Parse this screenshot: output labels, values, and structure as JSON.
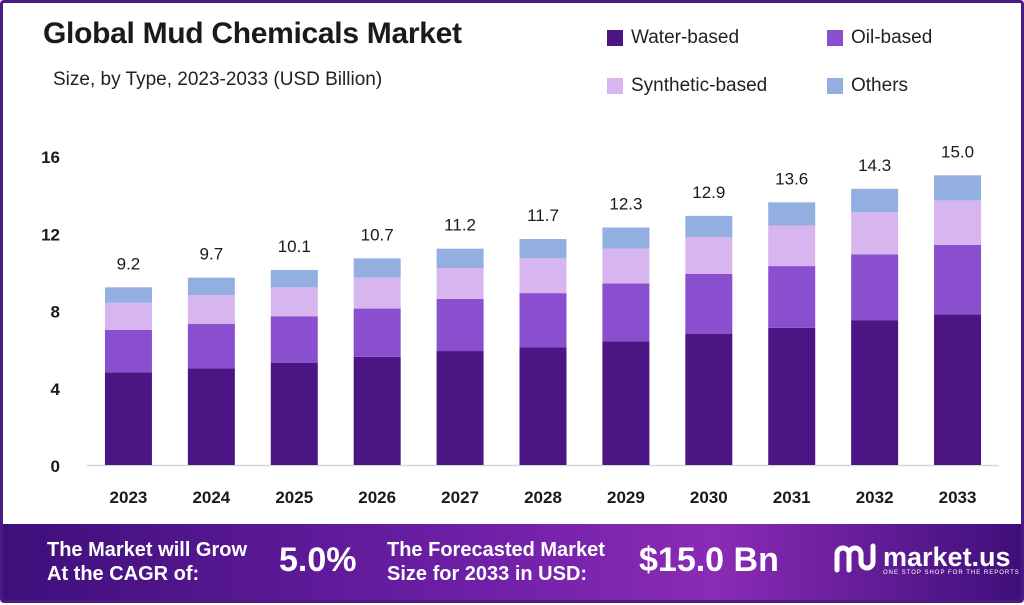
{
  "title": "Global Mud Chemicals Market",
  "subtitle": "Size, by Type, 2023-2033 (USD Billion)",
  "legend": [
    {
      "label": "Water-based",
      "color": "#4b1683"
    },
    {
      "label": "Oil-based",
      "color": "#8a4fce"
    },
    {
      "label": "Synthetic-based",
      "color": "#d7b6f0"
    },
    {
      "label": "Others",
      "color": "#93aee0"
    }
  ],
  "chart_data": {
    "type": "bar",
    "stacked": true,
    "categories": [
      "2023",
      "2024",
      "2025",
      "2026",
      "2027",
      "2028",
      "2029",
      "2030",
      "2031",
      "2032",
      "2033"
    ],
    "totals": [
      9.2,
      9.7,
      10.1,
      10.7,
      11.2,
      11.7,
      12.3,
      12.9,
      13.6,
      14.3,
      15.0
    ],
    "series": [
      {
        "name": "Water-based",
        "color": "#4b1683",
        "values": [
          4.8,
          5.0,
          5.3,
          5.6,
          5.9,
          6.1,
          6.4,
          6.8,
          7.1,
          7.5,
          7.8
        ]
      },
      {
        "name": "Oil-based",
        "color": "#8a4fce",
        "values": [
          2.2,
          2.3,
          2.4,
          2.5,
          2.7,
          2.8,
          3.0,
          3.1,
          3.2,
          3.4,
          3.6
        ]
      },
      {
        "name": "Synthetic-based",
        "color": "#d7b6f0",
        "values": [
          1.4,
          1.5,
          1.5,
          1.6,
          1.6,
          1.8,
          1.8,
          1.9,
          2.1,
          2.2,
          2.3
        ]
      },
      {
        "name": "Others",
        "color": "#93aee0",
        "values": [
          0.8,
          0.9,
          0.9,
          1.0,
          1.0,
          1.0,
          1.1,
          1.1,
          1.2,
          1.2,
          1.3
        ]
      }
    ],
    "y_ticks": [
      0,
      4,
      8,
      12,
      16
    ],
    "ylim": [
      0,
      16
    ],
    "grid": false
  },
  "banner": {
    "cagr_label": "The Market will Grow At the CAGR of:",
    "cagr_label_line1": "The Market will Grow",
    "cagr_label_line2": "At the CAGR of:",
    "cagr_value": "5.0%",
    "forecast_label_line1": "The Forecasted Market",
    "forecast_label_line2": "Size for 2033 in USD:",
    "forecast_value": "$15.0 Bn",
    "logo_text": "market.us",
    "logo_tagline": "ONE STOP SHOP FOR THE REPORTS"
  }
}
